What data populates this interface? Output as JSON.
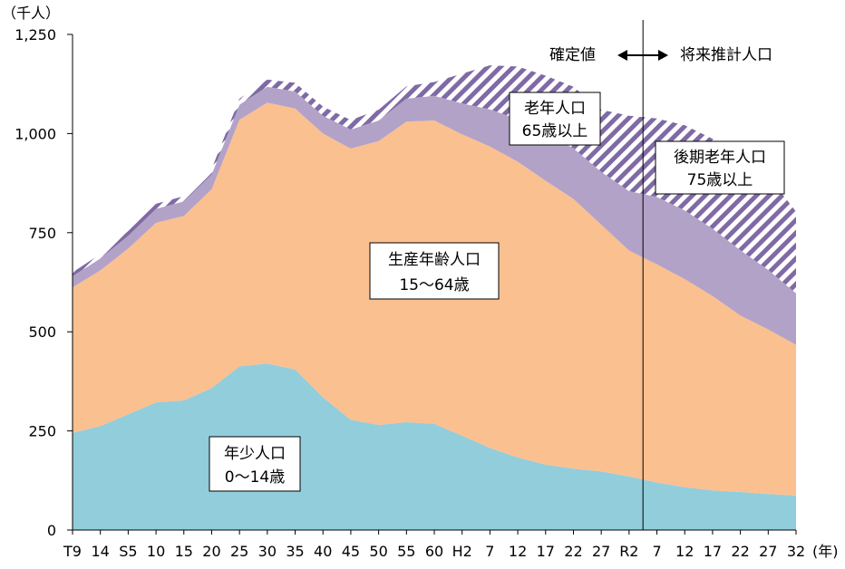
{
  "chart_data": {
    "type": "area",
    "stacked": true,
    "y_unit_label": "（千人）",
    "x_unit_label": "(年)",
    "ylim": [
      0,
      1250
    ],
    "yticks": [
      0,
      250,
      500,
      750,
      1000,
      1250
    ],
    "ytick_labels": [
      "0",
      "250",
      "500",
      "750",
      "1,000",
      "1,250"
    ],
    "categories": [
      "T9",
      "14",
      "S5",
      "10",
      "15",
      "20",
      "25",
      "30",
      "35",
      "40",
      "45",
      "50",
      "55",
      "60",
      "H2",
      "7",
      "12",
      "17",
      "22",
      "27",
      "R2",
      "7",
      "12",
      "17",
      "22",
      "27",
      "32"
    ],
    "series": [
      {
        "key": "young",
        "color": "#92cddc",
        "values": [
          245,
          262,
          292,
          322,
          327,
          358,
          413,
          420,
          405,
          335,
          278,
          265,
          272,
          268,
          238,
          207,
          183,
          165,
          155,
          148,
          135,
          120,
          108,
          100,
          96,
          91,
          87
        ]
      },
      {
        "key": "working",
        "color": "#fac090",
        "values": [
          367,
          393,
          418,
          453,
          465,
          502,
          622,
          658,
          658,
          665,
          684,
          716,
          758,
          765,
          760,
          760,
          746,
          716,
          680,
          622,
          570,
          550,
          525,
          490,
          445,
          415,
          380
        ]
      },
      {
        "key": "elderly_65_74",
        "color": "#b3a2c7",
        "values": [
          28,
          30,
          32,
          35,
          37,
          37,
          38,
          40,
          43,
          45,
          48,
          52,
          58,
          62,
          78,
          94,
          107,
          120,
          128,
          133,
          150,
          170,
          173,
          170,
          165,
          150,
          130
        ]
      },
      {
        "key": "elderly_75plus",
        "color": "#7f6aa5",
        "pattern": "diagonal-stripes",
        "values": [
          10,
          11,
          12,
          13,
          13,
          14,
          15,
          18,
          22,
          23,
          24,
          27,
          31,
          35,
          75,
          111,
          133,
          145,
          155,
          157,
          190,
          198,
          215,
          227,
          234,
          237,
          206
        ]
      }
    ],
    "period_divider_after": "R2",
    "period_labels": {
      "left": "確定値",
      "right": "将来推計人口",
      "arrow": "◀━━▶"
    },
    "area_labels": {
      "young_line1": "年少人口",
      "young_line2": "0～14歳",
      "working_line1": "生産年齢人口",
      "working_line2": "15～64歳",
      "elderly_line1": "老年人口",
      "elderly_line2": "65歳以上",
      "late_elderly_line1": "後期老年人口",
      "late_elderly_line2": "75歳以上"
    },
    "grid": false
  }
}
